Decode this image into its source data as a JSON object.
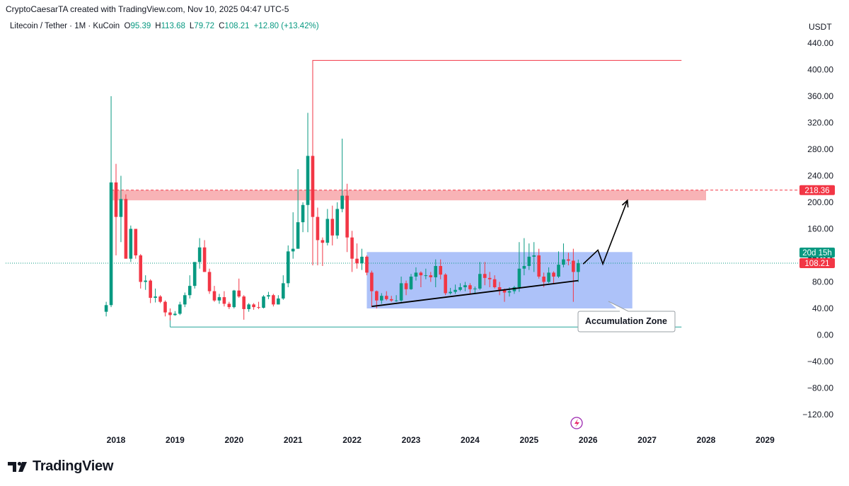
{
  "header": {
    "created_by": "CryptoCaesarTA created with TradingView.com, Nov 10, 2025 04:47 UTC-5"
  },
  "legend": {
    "symbol": "Litecoin / Tether · 1M · KuCoin",
    "o_label": "O",
    "o_value": "95.39",
    "h_label": "H",
    "h_value": "113.68",
    "l_label": "L",
    "l_value": "79.72",
    "c_label": "C",
    "c_value": "108.21",
    "change": "+12.80 (+13.42%)"
  },
  "price_axis": {
    "currency": "USDT"
  },
  "badges": {
    "resistance": "218.36",
    "countdown": "20d 15h",
    "last_price": "108.21"
  },
  "annotation": {
    "zone_label": "Accumulation Zone"
  },
  "footer": {
    "brand": "TradingView"
  },
  "colors": {
    "up": "#089981",
    "down": "#f23645",
    "zone": "#7b9cf5",
    "resistance_band": "#f7a6a9"
  },
  "chart_data": {
    "type": "candlestick",
    "y_axis": {
      "ticks": [
        440,
        400,
        360,
        320,
        280,
        240,
        200,
        160,
        120,
        80,
        40,
        0,
        -40,
        -80,
        -120
      ],
      "range": [
        -150,
        450
      ]
    },
    "x_axis": {
      "ticks": [
        "2018",
        "2019",
        "2020",
        "2021",
        "2022",
        "2023",
        "2024",
        "2025",
        "2026",
        "2027",
        "2028",
        "2029"
      ]
    },
    "levels": {
      "ath_line": 414,
      "resistance": 218.36,
      "support_line": 12,
      "last": 108.21
    },
    "resistance_band": [
      203,
      218.36
    ],
    "accumulation_zone": {
      "from": "2022-04",
      "to": "2026-10",
      "low": 40,
      "high": 125
    },
    "trendline": [
      [
        "2022-05",
        43
      ],
      [
        "2025-11",
        82
      ]
    ],
    "projection": [
      [
        "2025-12",
        107
      ],
      [
        "2026-03",
        128
      ],
      [
        "2026-04",
        107
      ],
      [
        "2026-09",
        203
      ]
    ],
    "candles": [
      [
        "2017-11",
        35,
        50,
        28,
        45
      ],
      [
        "2017-12",
        45,
        360,
        42,
        230
      ],
      [
        "2018-01",
        230,
        258,
        120,
        178
      ],
      [
        "2018-02",
        178,
        240,
        140,
        205
      ],
      [
        "2018-03",
        205,
        212,
        115,
        115
      ],
      [
        "2018-04",
        115,
        165,
        110,
        160
      ],
      [
        "2018-05",
        160,
        160,
        115,
        120
      ],
      [
        "2018-06",
        120,
        122,
        70,
        80
      ],
      [
        "2018-07",
        80,
        90,
        68,
        82
      ],
      [
        "2018-08",
        82,
        84,
        48,
        56
      ],
      [
        "2018-09",
        56,
        70,
        49,
        58
      ],
      [
        "2018-10",
        58,
        60,
        48,
        50
      ],
      [
        "2018-11",
        50,
        52,
        28,
        34
      ],
      [
        "2018-12",
        34,
        40,
        22,
        30
      ],
      [
        "2019-01",
        30,
        36,
        29,
        32
      ],
      [
        "2019-02",
        32,
        50,
        30,
        46
      ],
      [
        "2019-03",
        46,
        64,
        42,
        60
      ],
      [
        "2019-04",
        60,
        90,
        55,
        74
      ],
      [
        "2019-05",
        74,
        110,
        70,
        110
      ],
      [
        "2019-06",
        110,
        146,
        100,
        132
      ],
      [
        "2019-07",
        132,
        143,
        95,
        95
      ],
      [
        "2019-08",
        95,
        100,
        62,
        66
      ],
      [
        "2019-09",
        66,
        74,
        50,
        52
      ],
      [
        "2019-10",
        52,
        62,
        47,
        57
      ],
      [
        "2019-11",
        57,
        66,
        43,
        47
      ],
      [
        "2019-12",
        47,
        50,
        39,
        42
      ],
      [
        "2020-01",
        42,
        68,
        40,
        67
      ],
      [
        "2020-02",
        67,
        85,
        56,
        58
      ],
      [
        "2020-03",
        58,
        60,
        23,
        39
      ],
      [
        "2020-04",
        39,
        48,
        35,
        46
      ],
      [
        "2020-05",
        46,
        48,
        38,
        42
      ],
      [
        "2020-06",
        42,
        50,
        39,
        41
      ],
      [
        "2020-07",
        41,
        60,
        40,
        58
      ],
      [
        "2020-08",
        58,
        65,
        54,
        60
      ],
      [
        "2020-09",
        60,
        62,
        43,
        46
      ],
      [
        "2020-10",
        46,
        60,
        46,
        55
      ],
      [
        "2020-11",
        55,
        90,
        53,
        78
      ],
      [
        "2020-12",
        78,
        135,
        72,
        126
      ],
      [
        "2021-01",
        126,
        185,
        115,
        130
      ],
      [
        "2021-02",
        130,
        250,
        130,
        170
      ],
      [
        "2021-03",
        170,
        200,
        155,
        196
      ],
      [
        "2021-04",
        196,
        335,
        155,
        270
      ],
      [
        "2021-05",
        270,
        413,
        110,
        178
      ],
      [
        "2021-06",
        178,
        192,
        105,
        143
      ],
      [
        "2021-07",
        143,
        147,
        104,
        139
      ],
      [
        "2021-08",
        139,
        190,
        135,
        175
      ],
      [
        "2021-09",
        175,
        195,
        135,
        150
      ],
      [
        "2021-10",
        150,
        200,
        145,
        190
      ],
      [
        "2021-11",
        190,
        296,
        185,
        210
      ],
      [
        "2021-12",
        210,
        228,
        125,
        147
      ],
      [
        "2022-01",
        147,
        157,
        95,
        115
      ],
      [
        "2022-02",
        115,
        138,
        100,
        108
      ],
      [
        "2022-03",
        108,
        130,
        98,
        118
      ],
      [
        "2022-04",
        118,
        120,
        90,
        94
      ],
      [
        "2022-05",
        94,
        97,
        42,
        66
      ],
      [
        "2022-06",
        66,
        67,
        40,
        52
      ],
      [
        "2022-07",
        52,
        63,
        47,
        59
      ],
      [
        "2022-08",
        59,
        66,
        52,
        54
      ],
      [
        "2022-09",
        54,
        59,
        50,
        52
      ],
      [
        "2022-10",
        52,
        60,
        50,
        52
      ],
      [
        "2022-11",
        52,
        88,
        50,
        78
      ],
      [
        "2022-12",
        78,
        82,
        60,
        69
      ],
      [
        "2023-01",
        69,
        92,
        68,
        88
      ],
      [
        "2023-02",
        88,
        102,
        82,
        94
      ],
      [
        "2023-03",
        94,
        96,
        72,
        90
      ],
      [
        "2023-04",
        90,
        100,
        84,
        90
      ],
      [
        "2023-05",
        90,
        95,
        80,
        87
      ],
      [
        "2023-06",
        87,
        114,
        72,
        104
      ],
      [
        "2023-07",
        104,
        114,
        84,
        91
      ],
      [
        "2023-08",
        91,
        93,
        60,
        63
      ],
      [
        "2023-09",
        63,
        71,
        61,
        65
      ],
      [
        "2023-10",
        65,
        76,
        62,
        68
      ],
      [
        "2023-11",
        68,
        78,
        66,
        72
      ],
      [
        "2023-12",
        72,
        80,
        66,
        75
      ],
      [
        "2024-01",
        75,
        78,
        61,
        69
      ],
      [
        "2024-02",
        69,
        73,
        62,
        70
      ],
      [
        "2024-03",
        70,
        110,
        68,
        92
      ],
      [
        "2024-04",
        92,
        110,
        75,
        86
      ],
      [
        "2024-05",
        86,
        95,
        72,
        84
      ],
      [
        "2024-06",
        84,
        90,
        70,
        72
      ],
      [
        "2024-07",
        72,
        80,
        60,
        68
      ],
      [
        "2024-08",
        68,
        70,
        50,
        64
      ],
      [
        "2024-09",
        64,
        72,
        58,
        66
      ],
      [
        "2024-10",
        66,
        74,
        62,
        72
      ],
      [
        "2024-11",
        72,
        140,
        65,
        100
      ],
      [
        "2024-12",
        100,
        146,
        90,
        104
      ],
      [
        "2025-01",
        104,
        138,
        98,
        118
      ],
      [
        "2025-02",
        118,
        140,
        95,
        120
      ],
      [
        "2025-03",
        120,
        130,
        85,
        88
      ],
      [
        "2025-04",
        88,
        94,
        72,
        80
      ],
      [
        "2025-05",
        80,
        102,
        78,
        94
      ],
      [
        "2025-06",
        94,
        96,
        78,
        88
      ],
      [
        "2025-07",
        88,
        126,
        86,
        106
      ],
      [
        "2025-08",
        106,
        138,
        102,
        114
      ],
      [
        "2025-09",
        114,
        124,
        105,
        112
      ],
      [
        "2025-10",
        112,
        130,
        50,
        95
      ],
      [
        "2025-11",
        95,
        113.68,
        79.72,
        108.21
      ]
    ]
  }
}
